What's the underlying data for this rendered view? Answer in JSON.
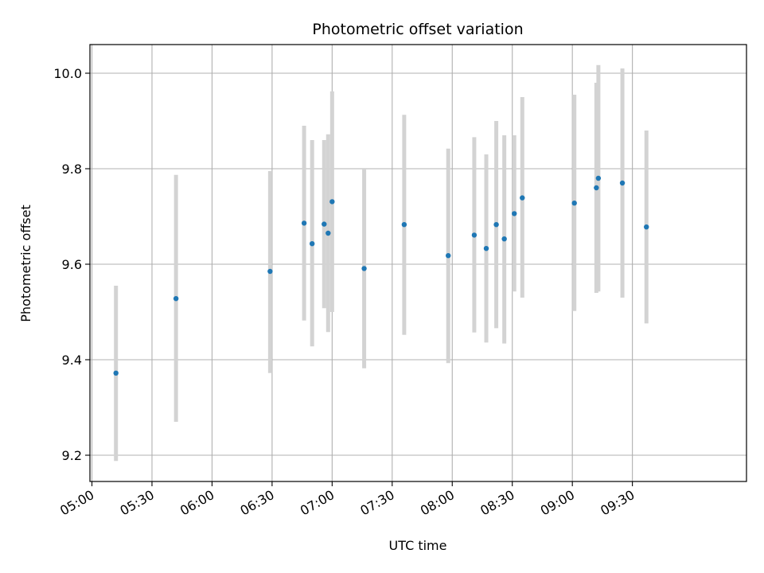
{
  "chart_data": {
    "type": "scatter",
    "title": "Photometric offset variation",
    "xlabel": "UTC time",
    "ylabel": "Photometric offset",
    "grid": true,
    "x_tick_labels": [
      "05:00",
      "05:30",
      "06:00",
      "06:30",
      "07:00",
      "07:30",
      "08:00",
      "08:30",
      "09:00",
      "09:30"
    ],
    "y_tick_labels": [
      "9.2",
      "9.4",
      "9.6",
      "9.8",
      "10.0"
    ],
    "y_ticks": [
      9.2,
      9.4,
      9.6,
      9.8,
      10.0
    ],
    "xlim": [
      "04:59",
      "10:27"
    ],
    "ylim": [
      9.145,
      10.06
    ],
    "colors": {
      "points": "#1f77b4",
      "errorbars": "#d3d3d3",
      "grid": "#b0b0b0",
      "axes": "#000000"
    },
    "points": [
      {
        "x": "05:12",
        "y": 9.372,
        "err_low": 9.188,
        "err_high": 9.555
      },
      {
        "x": "05:42",
        "y": 9.528,
        "err_low": 9.27,
        "err_high": 9.787
      },
      {
        "x": "06:29",
        "y": 9.585,
        "err_low": 9.372,
        "err_high": 9.795
      },
      {
        "x": "06:46",
        "y": 9.686,
        "err_low": 9.482,
        "err_high": 9.89
      },
      {
        "x": "06:50",
        "y": 9.643,
        "err_low": 9.428,
        "err_high": 9.86
      },
      {
        "x": "06:56",
        "y": 9.684,
        "err_low": 9.508,
        "err_high": 9.86
      },
      {
        "x": "06:58",
        "y": 9.665,
        "err_low": 9.458,
        "err_high": 9.872
      },
      {
        "x": "07:00",
        "y": 9.731,
        "err_low": 9.5,
        "err_high": 9.962
      },
      {
        "x": "07:16",
        "y": 9.591,
        "err_low": 9.382,
        "err_high": 9.8
      },
      {
        "x": "07:36",
        "y": 9.683,
        "err_low": 9.452,
        "err_high": 9.913
      },
      {
        "x": "07:58",
        "y": 9.618,
        "err_low": 9.393,
        "err_high": 9.842
      },
      {
        "x": "08:11",
        "y": 9.661,
        "err_low": 9.457,
        "err_high": 9.866
      },
      {
        "x": "08:17",
        "y": 9.633,
        "err_low": 9.436,
        "err_high": 9.83
      },
      {
        "x": "08:22",
        "y": 9.683,
        "err_low": 9.466,
        "err_high": 9.9
      },
      {
        "x": "08:26",
        "y": 9.653,
        "err_low": 9.434,
        "err_high": 9.87
      },
      {
        "x": "08:31",
        "y": 9.706,
        "err_low": 9.543,
        "err_high": 9.87
      },
      {
        "x": "08:35",
        "y": 9.739,
        "err_low": 9.53,
        "err_high": 9.95
      },
      {
        "x": "09:01",
        "y": 9.728,
        "err_low": 9.502,
        "err_high": 9.955
      },
      {
        "x": "09:12",
        "y": 9.76,
        "err_low": 9.54,
        "err_high": 9.98
      },
      {
        "x": "09:13",
        "y": 9.78,
        "err_low": 9.543,
        "err_high": 10.017
      },
      {
        "x": "09:25",
        "y": 9.77,
        "err_low": 9.53,
        "err_high": 10.01
      },
      {
        "x": "09:37",
        "y": 9.678,
        "err_low": 9.476,
        "err_high": 9.88
      }
    ]
  }
}
